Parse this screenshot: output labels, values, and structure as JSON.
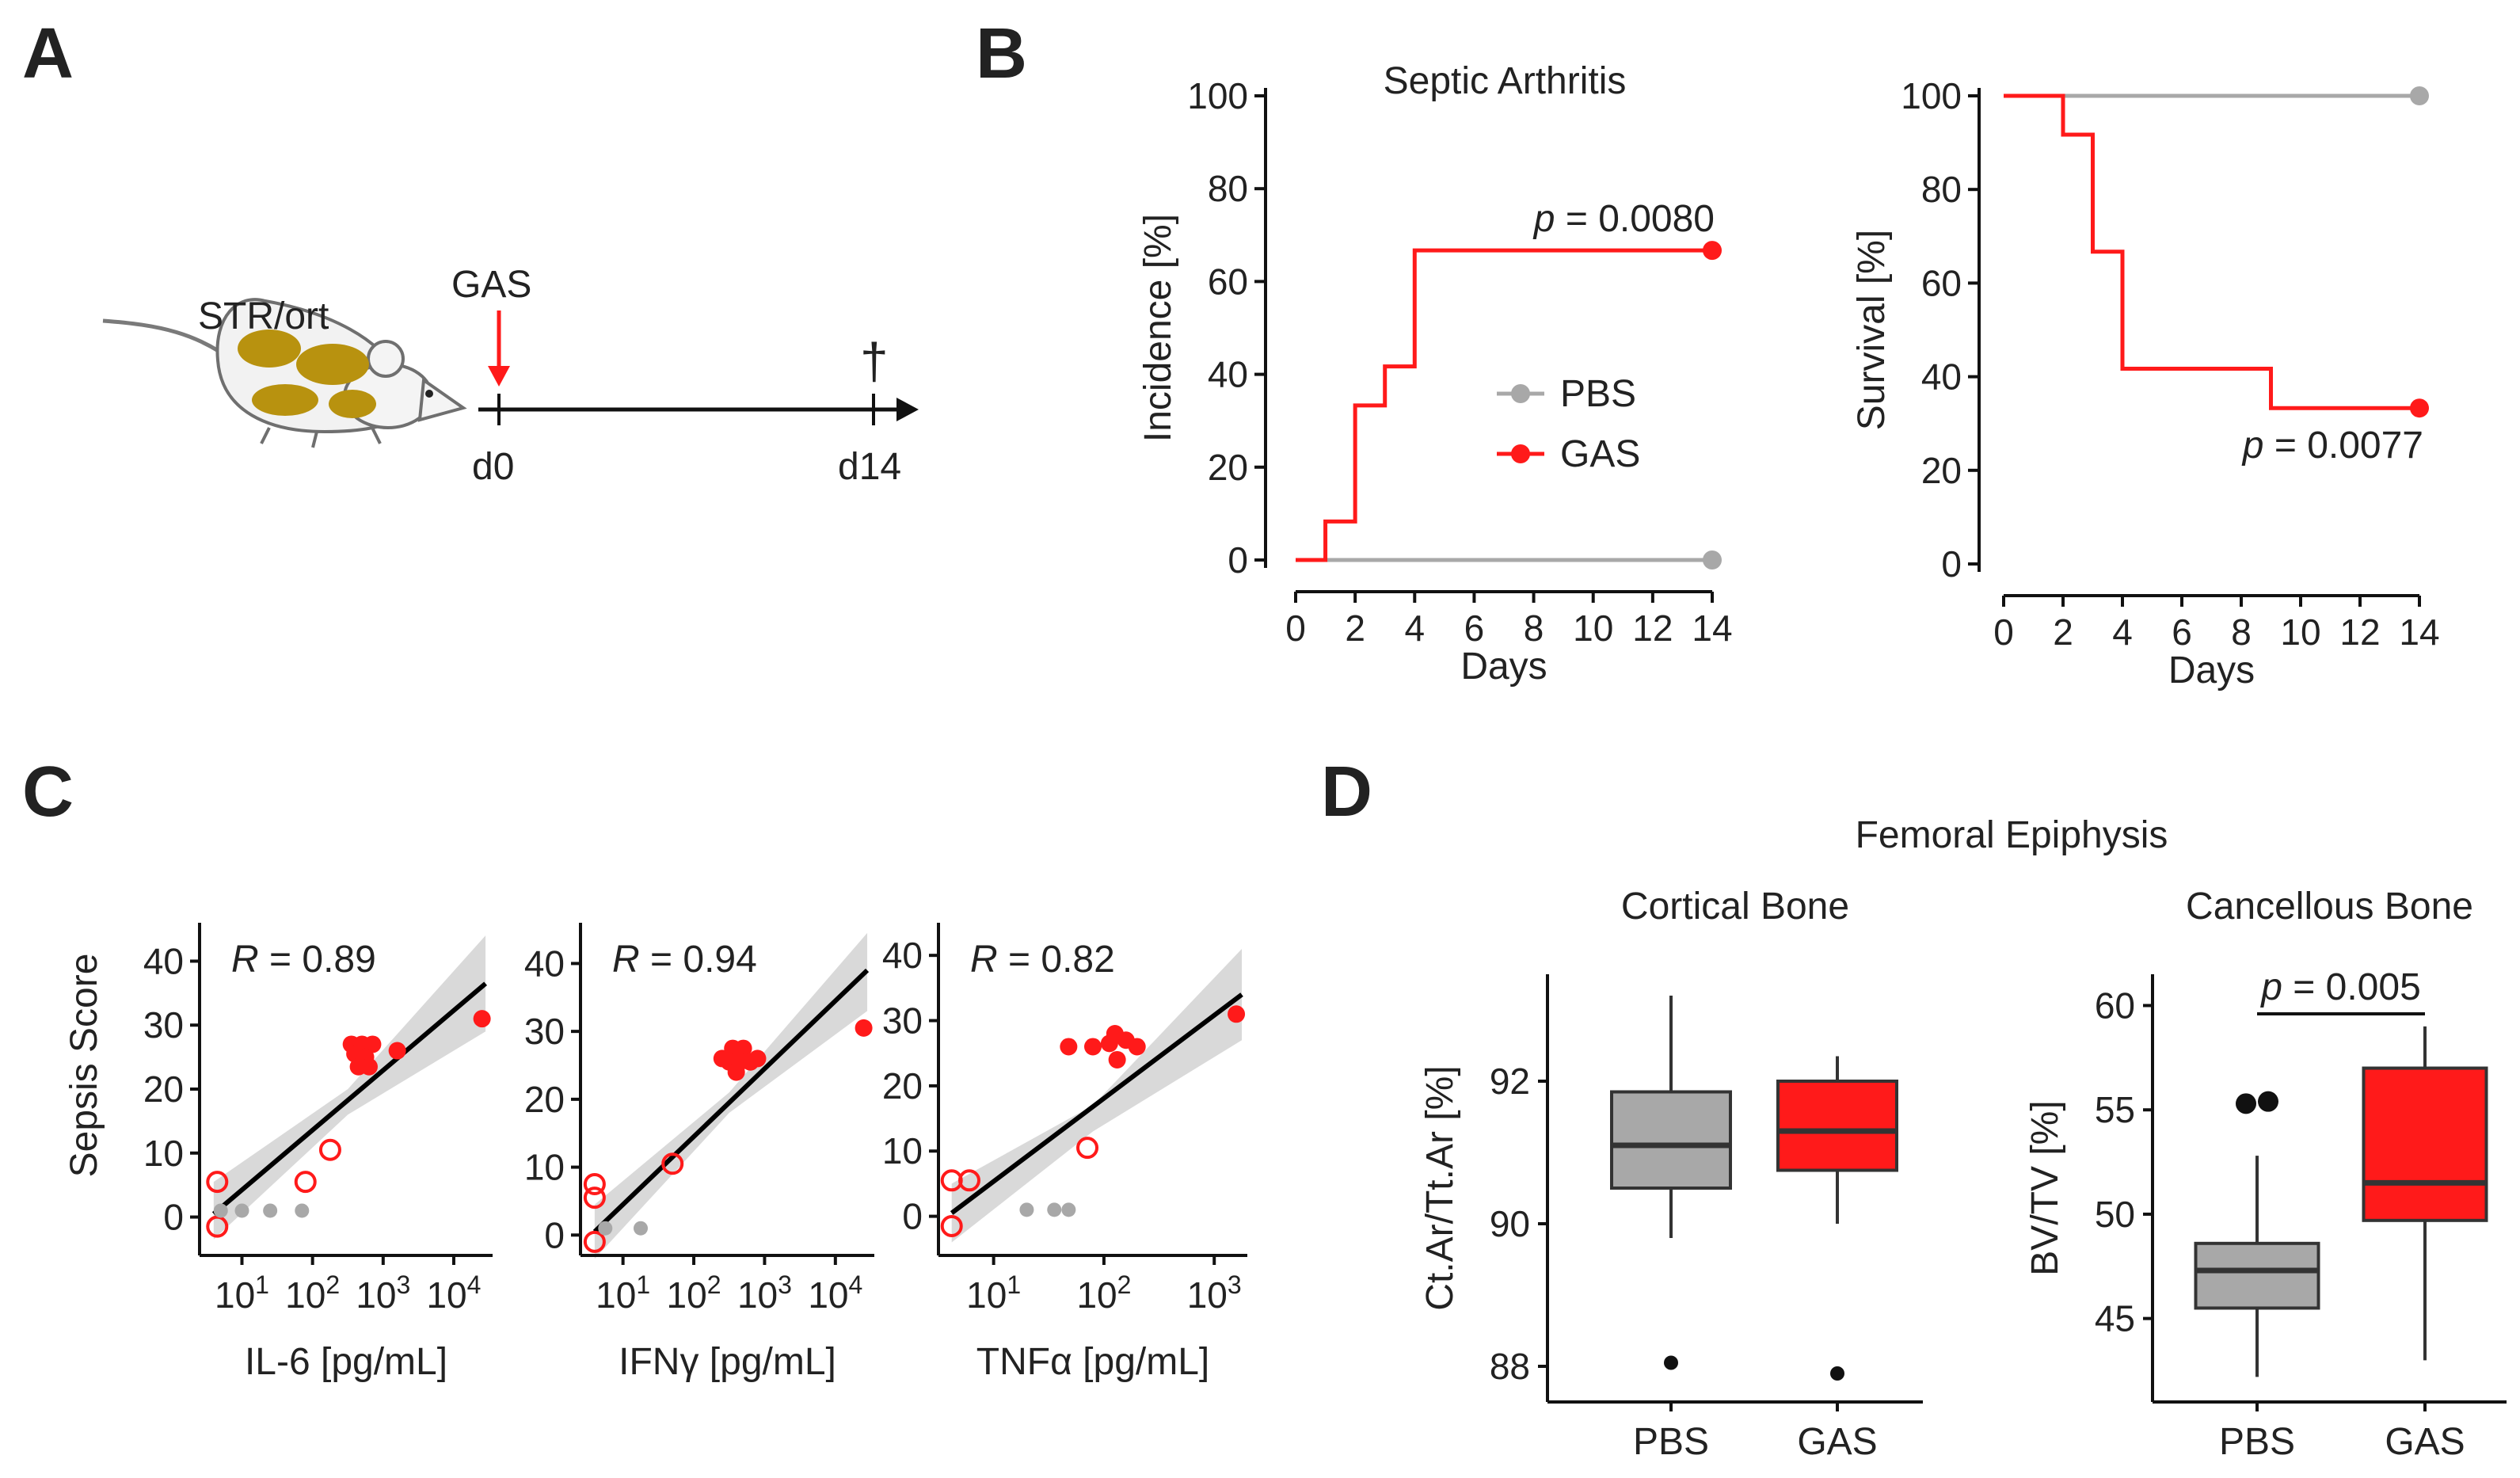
{
  "panels": {
    "a": "A",
    "b": "B",
    "c": "C",
    "d": "D"
  },
  "panel_a": {
    "strain": "STR/ort",
    "injection": "GAS",
    "start": "d0",
    "end": "d14",
    "dagger": "†"
  },
  "panel_d": {
    "title": "Femoral Epiphysis"
  },
  "colors": {
    "pbs": "#a8a8a8",
    "gas": "#ff1a1a",
    "ci": "#d9d9d9",
    "fit": "#000000"
  },
  "chart_data": [
    {
      "id": "incidence",
      "type": "line",
      "step": true,
      "title": "Septic Arthritis",
      "xlabel": "Days",
      "ylabel": "Incidence [%]",
      "xlim": [
        0,
        14
      ],
      "ylim": [
        0,
        100
      ],
      "xticks": [
        0,
        2,
        4,
        6,
        8,
        10,
        12,
        14
      ],
      "yticks": [
        0,
        20,
        40,
        60,
        80,
        100
      ],
      "series": [
        {
          "name": "PBS",
          "x": [
            0,
            14
          ],
          "y": [
            0,
            0
          ]
        },
        {
          "name": "GAS",
          "x": [
            0,
            1,
            2,
            3,
            4,
            14
          ],
          "y": [
            0,
            8.3,
            33.3,
            41.7,
            66.7,
            66.7
          ]
        }
      ],
      "legend": [
        "PBS",
        "GAS"
      ],
      "annotation": {
        "p": "p",
        "rest": " = 0.0080"
      }
    },
    {
      "id": "survival",
      "type": "line",
      "step": true,
      "title": "",
      "xlabel": "Days",
      "ylabel": "Survival [%]",
      "xlim": [
        0,
        14
      ],
      "ylim": [
        0,
        100
      ],
      "xticks": [
        0,
        2,
        4,
        6,
        8,
        10,
        12,
        14
      ],
      "yticks": [
        0,
        20,
        40,
        60,
        80,
        100
      ],
      "series": [
        {
          "name": "PBS",
          "x": [
            0,
            14
          ],
          "y": [
            100,
            100
          ]
        },
        {
          "name": "GAS",
          "x": [
            0,
            2,
            3,
            4,
            9,
            14
          ],
          "y": [
            100,
            91.7,
            66.7,
            41.7,
            33.3,
            33.3
          ]
        }
      ],
      "annotation": {
        "p": "p",
        "rest": " = 0.0077"
      }
    },
    {
      "id": "il6",
      "type": "scatter",
      "xscale": "log",
      "xlabel": "IL-6 [pg/mL]",
      "ylabel": "Sepsis Score",
      "xlim_log10": [
        0.4,
        4.55
      ],
      "ylim": [
        -6,
        46
      ],
      "xticks_log10": [
        1,
        2,
        3,
        4
      ],
      "yticks": [
        0,
        10,
        20,
        30,
        40
      ],
      "R": "R",
      "R_rest": " = 0.89",
      "fit_log10": [
        [
          0.6,
          0.5
        ],
        [
          4.45,
          36.5
        ]
      ],
      "ci_upper": [
        [
          0.6,
          5.5
        ],
        [
          2.5,
          20
        ],
        [
          4.45,
          44
        ]
      ],
      "ci_lower": [
        [
          0.6,
          -3.5
        ],
        [
          2.5,
          16
        ],
        [
          4.45,
          29
        ]
      ],
      "points": [
        {
          "x": 0.65,
          "y": 5.5,
          "g": "open"
        },
        {
          "x": 0.65,
          "y": -1.5,
          "g": "open"
        },
        {
          "x": 1.9,
          "y": 5.5,
          "g": "open"
        },
        {
          "x": 2.25,
          "y": 10.5,
          "g": "open"
        },
        {
          "x": 0.7,
          "y": 1,
          "g": "pbs"
        },
        {
          "x": 1.0,
          "y": 1,
          "g": "pbs"
        },
        {
          "x": 1.4,
          "y": 1,
          "g": "pbs"
        },
        {
          "x": 1.85,
          "y": 1,
          "g": "pbs"
        },
        {
          "x": 2.55,
          "y": 27,
          "g": "gas"
        },
        {
          "x": 2.7,
          "y": 27,
          "g": "gas"
        },
        {
          "x": 2.85,
          "y": 27,
          "g": "gas"
        },
        {
          "x": 2.6,
          "y": 25.5,
          "g": "gas"
        },
        {
          "x": 2.75,
          "y": 25,
          "g": "gas"
        },
        {
          "x": 2.65,
          "y": 23.5,
          "g": "gas"
        },
        {
          "x": 2.8,
          "y": 23.5,
          "g": "gas"
        },
        {
          "x": 3.2,
          "y": 26,
          "g": "gas"
        },
        {
          "x": 4.4,
          "y": 31,
          "g": "gas"
        }
      ]
    },
    {
      "id": "ifng",
      "type": "scatter",
      "xscale": "log",
      "xlabel": "IFNγ [pg/mL]",
      "ylabel": "",
      "xlim_log10": [
        0.4,
        4.55
      ],
      "ylim": [
        -3,
        46
      ],
      "xticks_log10": [
        1,
        2,
        3,
        4
      ],
      "yticks": [
        0,
        10,
        20,
        30,
        40
      ],
      "R": "R",
      "R_rest": " = 0.94",
      "fit_log10": [
        [
          0.6,
          0.5
        ],
        [
          4.45,
          39
        ]
      ],
      "ci_upper": [
        [
          0.6,
          4.5
        ],
        [
          2.5,
          21
        ],
        [
          4.45,
          44.5
        ]
      ],
      "ci_lower": [
        [
          0.6,
          -3.5
        ],
        [
          2.5,
          18
        ],
        [
          4.45,
          33
        ]
      ],
      "points": [
        {
          "x": 0.6,
          "y": 7.5,
          "g": "open"
        },
        {
          "x": 0.6,
          "y": 5.5,
          "g": "open"
        },
        {
          "x": 0.6,
          "y": -1,
          "g": "open"
        },
        {
          "x": 1.7,
          "y": 10.5,
          "g": "open"
        },
        {
          "x": 0.75,
          "y": 1,
          "g": "pbs"
        },
        {
          "x": 1.25,
          "y": 1,
          "g": "pbs"
        },
        {
          "x": 2.4,
          "y": 26,
          "g": "gas"
        },
        {
          "x": 2.55,
          "y": 27.5,
          "g": "gas"
        },
        {
          "x": 2.7,
          "y": 27.5,
          "g": "gas"
        },
        {
          "x": 2.5,
          "y": 25.5,
          "g": "gas"
        },
        {
          "x": 2.65,
          "y": 25.5,
          "g": "gas"
        },
        {
          "x": 2.8,
          "y": 25.5,
          "g": "gas"
        },
        {
          "x": 2.9,
          "y": 26,
          "g": "gas"
        },
        {
          "x": 2.6,
          "y": 24,
          "g": "gas"
        },
        {
          "x": 4.4,
          "y": 30.5,
          "g": "gas"
        }
      ]
    },
    {
      "id": "tnfa",
      "type": "scatter",
      "xscale": "log",
      "xlabel": "TNFα [pg/mL]",
      "ylabel": "",
      "xlim_log10": [
        0.5,
        3.3
      ],
      "ylim": [
        -6,
        45
      ],
      "xticks_log10": [
        1,
        2,
        3
      ],
      "yticks": [
        0,
        10,
        20,
        30,
        40
      ],
      "R": "R",
      "R_rest": " = 0.82",
      "fit_log10": [
        [
          0.62,
          0.5
        ],
        [
          3.25,
          34
        ]
      ],
      "ci_upper": [
        [
          0.62,
          5
        ],
        [
          1.9,
          17
        ],
        [
          3.25,
          41
        ]
      ],
      "ci_lower": [
        [
          0.62,
          -4
        ],
        [
          1.9,
          13
        ],
        [
          3.25,
          27
        ]
      ],
      "points": [
        {
          "x": 0.62,
          "y": 5.5,
          "g": "open"
        },
        {
          "x": 0.78,
          "y": 5.5,
          "g": "open"
        },
        {
          "x": 0.62,
          "y": -1.5,
          "g": "open"
        },
        {
          "x": 1.85,
          "y": 10.5,
          "g": "open"
        },
        {
          "x": 1.3,
          "y": 1,
          "g": "pbs"
        },
        {
          "x": 1.55,
          "y": 1,
          "g": "pbs"
        },
        {
          "x": 1.68,
          "y": 1,
          "g": "pbs"
        },
        {
          "x": 1.68,
          "y": 26,
          "g": "gas"
        },
        {
          "x": 1.9,
          "y": 26,
          "g": "gas"
        },
        {
          "x": 2.1,
          "y": 28,
          "g": "gas"
        },
        {
          "x": 2.05,
          "y": 26.5,
          "g": "gas"
        },
        {
          "x": 2.2,
          "y": 27,
          "g": "gas"
        },
        {
          "x": 2.3,
          "y": 26,
          "g": "gas"
        },
        {
          "x": 2.12,
          "y": 24,
          "g": "gas"
        },
        {
          "x": 3.2,
          "y": 31,
          "g": "gas"
        }
      ]
    },
    {
      "id": "cortical",
      "type": "box",
      "title": "Cortical Bone",
      "ylabel": "Ct.Ar/Tt.Ar [%]",
      "categories": [
        "PBS",
        "GAS"
      ],
      "ylim": [
        87.5,
        93.5
      ],
      "yticks": [
        88,
        90,
        92
      ],
      "boxes": [
        {
          "name": "PBS",
          "min": 89.8,
          "q1": 90.5,
          "median": 91.1,
          "q3": 91.85,
          "max": 93.2,
          "outliers": [
            88.05
          ]
        },
        {
          "name": "GAS",
          "min": 90.0,
          "q1": 90.75,
          "median": 91.3,
          "q3": 92.0,
          "max": 92.35,
          "outliers": [
            87.9
          ]
        }
      ]
    },
    {
      "id": "cancellous",
      "type": "box",
      "title": "Cancellous Bone",
      "ylabel": "BV/TV [%]",
      "categories": [
        "PBS",
        "GAS"
      ],
      "ylim": [
        41,
        61.5
      ],
      "yticks": [
        45,
        50,
        55,
        60
      ],
      "boxes": [
        {
          "name": "PBS",
          "min": 42.2,
          "q1": 45.5,
          "median": 47.3,
          "q3": 48.6,
          "max": 52.8,
          "outliers": [
            55.3,
            55.4
          ]
        },
        {
          "name": "GAS",
          "min": 43.0,
          "q1": 49.7,
          "median": 51.5,
          "q3": 57.0,
          "max": 59.0,
          "outliers": []
        }
      ],
      "annotation": {
        "p": "p",
        "rest": " = 0.005"
      }
    }
  ]
}
